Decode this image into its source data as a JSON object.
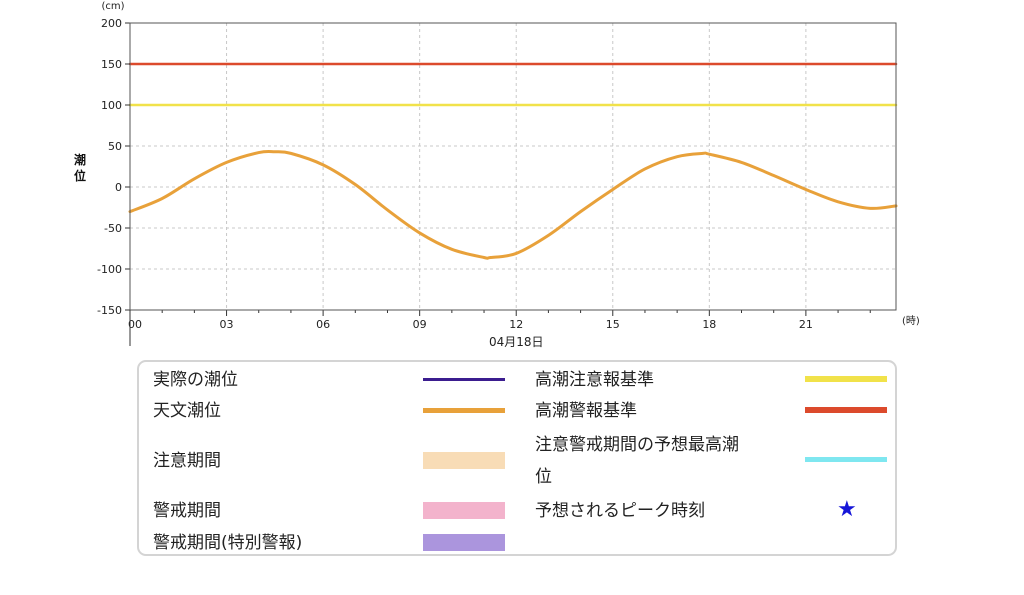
{
  "chart_data": {
    "type": "line",
    "y_unit": "(cm)",
    "x_unit": "(時)",
    "ylabel": "潮位",
    "date_label": "04月18日",
    "ylim": [
      -150,
      200
    ],
    "yticks": [
      200,
      150,
      100,
      50,
      0,
      -50,
      -100,
      -150
    ],
    "xlim": [
      0,
      23.8
    ],
    "xticks": [
      0,
      3,
      6,
      9,
      12,
      15,
      18,
      21
    ],
    "xtick_labels": [
      "00",
      "03",
      "06",
      "09",
      "12",
      "15",
      "18",
      "21"
    ],
    "grid": true,
    "series": [
      {
        "name": "天文潮位",
        "color": "#e8a13a",
        "x": [
          0,
          1,
          2,
          3,
          4,
          4.5,
          5,
          6,
          7,
          8,
          9,
          10,
          11,
          11.2,
          12,
          13,
          14,
          15,
          16,
          17,
          17.8,
          18,
          19,
          20,
          21,
          22,
          23,
          23.8
        ],
        "y": [
          -30,
          -14,
          10,
          30,
          42,
          43,
          41,
          27,
          3,
          -28,
          -56,
          -76,
          -86,
          -86,
          -81,
          -59,
          -30,
          -3,
          22,
          37,
          41,
          40,
          30,
          14,
          -3,
          -18,
          -26,
          -23
        ]
      },
      {
        "name": "高潮注意報基準",
        "color": "#f1e24a",
        "x": [
          0,
          23.8
        ],
        "y": [
          100,
          100
        ]
      },
      {
        "name": "高潮警報基準",
        "color": "#dc4a2c",
        "x": [
          0,
          23.8
        ],
        "y": [
          150,
          150
        ]
      }
    ]
  },
  "legend": {
    "items": [
      {
        "label": "実際の潮位",
        "color": "#3b1d8f",
        "kind": "line"
      },
      {
        "label": "天文潮位",
        "color": "#e8a13a",
        "kind": "line"
      },
      {
        "label": "注意期間",
        "color": "#f8dcb6",
        "kind": "band"
      },
      {
        "label": "警戒期間",
        "color": "#f3b3cc",
        "kind": "band"
      },
      {
        "label": "警戒期間(特別警報)",
        "color": "#ab95dd",
        "kind": "band"
      },
      {
        "label": "高潮注意報基準",
        "color": "#f1e24a",
        "kind": "line"
      },
      {
        "label": "高潮警報基準",
        "color": "#dc4a2c",
        "kind": "line"
      },
      {
        "label": "注意警戒期間の予想最高潮",
        "label_cont": "位",
        "color": "#7fe7f0",
        "kind": "line"
      },
      {
        "label": "予想されるピーク時刻",
        "color": "#1616d8",
        "kind": "star",
        "icon": "star-icon"
      }
    ]
  }
}
